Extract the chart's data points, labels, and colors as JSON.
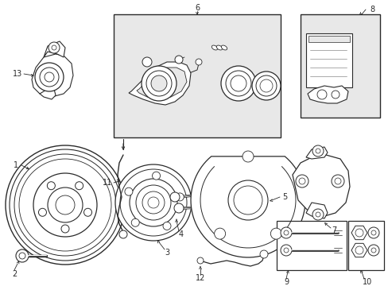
{
  "bg_color": "#ffffff",
  "lc": "#2a2a2a",
  "box_fill": "#e8e8e8",
  "fig_w": 4.89,
  "fig_h": 3.6,
  "dpi": 100
}
